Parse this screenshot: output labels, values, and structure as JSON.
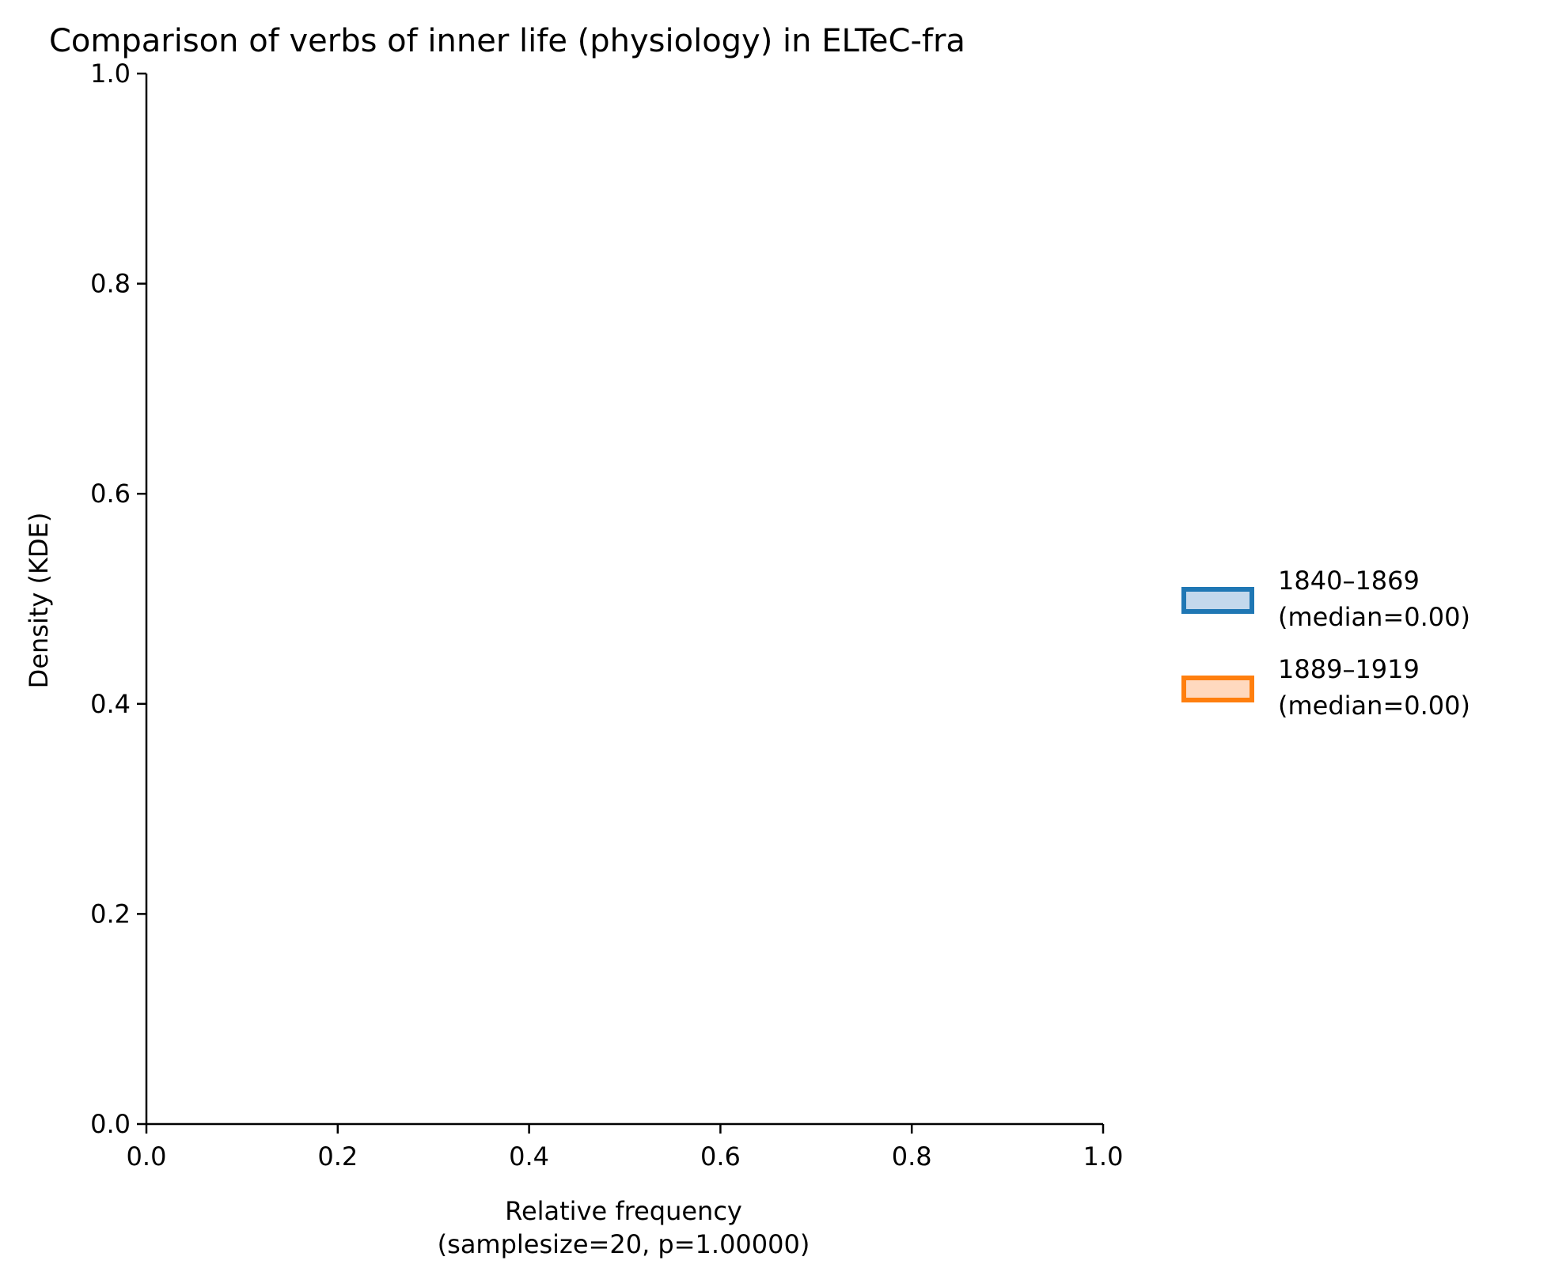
{
  "chart_data": {
    "type": "area",
    "title": "Comparison of verbs of inner life (physiology) in ELTeC-fra",
    "xlabel_line1": "Relative frequency",
    "xlabel_line2": "(samplesize=20, p=1.00000)",
    "ylabel": "Density (KDE)",
    "xlim": [
      0.0,
      1.0
    ],
    "ylim": [
      0.0,
      1.0
    ],
    "x_ticks": [
      0.0,
      0.2,
      0.4,
      0.6,
      0.8,
      1.0
    ],
    "x_tick_labels": [
      "0.0",
      "0.2",
      "0.4",
      "0.6",
      "0.8",
      "1.0"
    ],
    "y_ticks": [
      0.0,
      0.2,
      0.4,
      0.6,
      0.8,
      1.0
    ],
    "y_tick_labels": [
      "0.0",
      "0.2",
      "0.4",
      "0.6",
      "0.8",
      "1.0"
    ],
    "grid": false,
    "legend_position": "right",
    "series": [
      {
        "name_line1": "1840–1869",
        "name_line2": "(median=0.00)",
        "color": "#1f77b4",
        "fill": "#c3d8ec",
        "points": []
      },
      {
        "name_line1": "1889–1919",
        "name_line2": "(median=0.00)",
        "color": "#ff7f0e",
        "fill": "#ffd9bf",
        "points": []
      }
    ]
  }
}
